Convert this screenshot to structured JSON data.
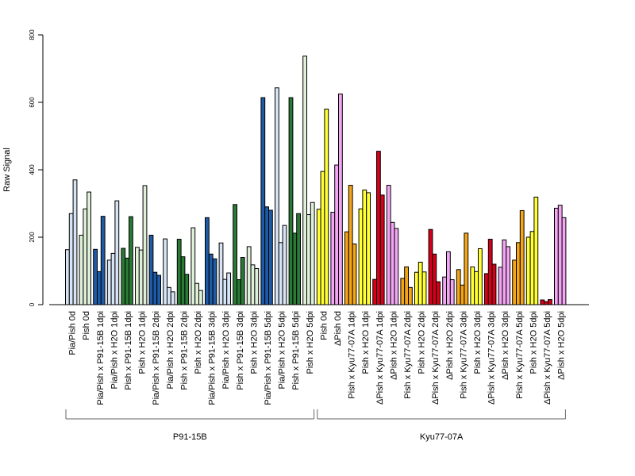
{
  "chart_data": {
    "type": "bar",
    "ylabel": "Raw Signal",
    "ylim": [
      0,
      800
    ],
    "yticks": [
      0,
      200,
      400,
      600,
      800
    ],
    "grid": false,
    "legend": "none",
    "colors": {
      "light_blue": "#d6e4f5",
      "dark_blue": "#1f5aa6",
      "light_green": "#dff0d8",
      "dark_green": "#2a7a36",
      "yellow": "#ffff33",
      "pink": "#f4a6f4",
      "orange": "#f5a516",
      "red": "#d7001a"
    },
    "categories": [
      {
        "label": "Pia/Pish 0d",
        "values": [
          163,
          270,
          370
        ],
        "color": "light_blue"
      },
      {
        "label": "Pish 0d",
        "values": [
          206,
          284,
          334
        ],
        "color": "light_green"
      },
      {
        "label": "Pia/Pish x P91-15B 1dpi",
        "values": [
          164,
          98,
          262
        ],
        "color": "dark_blue"
      },
      {
        "label": "Pia/Pish x H2O 1dpi",
        "values": [
          132,
          152,
          308
        ],
        "color": "light_blue"
      },
      {
        "label": "Pish x P91-15B 1dpi",
        "values": [
          167,
          138,
          261
        ],
        "color": "dark_green"
      },
      {
        "label": "Pish x H2O 1dpi",
        "values": [
          170,
          162,
          353
        ],
        "color": "light_green"
      },
      {
        "label": "Pia/Pish x P91-15B 2dpi",
        "values": [
          206,
          96,
          87
        ],
        "color": "dark_blue"
      },
      {
        "label": "Pia/Pish x H2O 2dpi",
        "values": [
          195,
          51,
          38
        ],
        "color": "light_blue"
      },
      {
        "label": "Pish x P91-15B 2dpi",
        "values": [
          194,
          142,
          90
        ],
        "color": "dark_green"
      },
      {
        "label": "Pish x H2O 2dpi",
        "values": [
          228,
          63,
          42
        ],
        "color": "light_green"
      },
      {
        "label": "Pia/Pish x P91-15B 3dpi",
        "values": [
          258,
          150,
          136
        ],
        "color": "dark_blue"
      },
      {
        "label": "Pia/Pish x H2O 3dpi",
        "values": [
          183,
          75,
          94
        ],
        "color": "light_blue"
      },
      {
        "label": "Pish x P91-15B 3dpi",
        "values": [
          297,
          74,
          140
        ],
        "color": "dark_green"
      },
      {
        "label": "Pish x H2O 3dpi",
        "values": [
          172,
          118,
          107
        ],
        "color": "light_green"
      },
      {
        "label": "Pia/Pish x P91-15B 5dpi",
        "values": [
          614,
          290,
          280
        ],
        "color": "dark_blue"
      },
      {
        "label": "Pia/Pish x H2O 5dpi",
        "values": [
          643,
          184,
          235
        ],
        "color": "light_blue"
      },
      {
        "label": "Pish x P91-15B 5dpi",
        "values": [
          614,
          212,
          270
        ],
        "color": "dark_green"
      },
      {
        "label": "Pish x H2O 5dpi",
        "values": [
          737,
          267,
          303
        ],
        "color": "light_green"
      },
      {
        "label": "Pish 0d",
        "values": [
          283,
          395,
          580
        ],
        "color": "yellow"
      },
      {
        "label": "ΔPish 0d",
        "values": [
          274,
          414,
          625
        ],
        "color": "pink"
      },
      {
        "label": "Pish x Kyu77-07A 1dpi",
        "values": [
          216,
          354,
          180
        ],
        "color": "orange"
      },
      {
        "label": "Pish x H2O 1dpi",
        "values": [
          284,
          340,
          332
        ],
        "color": "yellow"
      },
      {
        "label": "ΔPish x Kyu77-07A 1dpi",
        "values": [
          75,
          455,
          325
        ],
        "color": "red"
      },
      {
        "label": "ΔPish x H2O 1dpi",
        "values": [
          354,
          244,
          226
        ],
        "color": "pink"
      },
      {
        "label": "Pish x Kyu77-07A 2dpi",
        "values": [
          78,
          112,
          51
        ],
        "color": "orange"
      },
      {
        "label": "Pish x H2O 2dpi",
        "values": [
          96,
          126,
          97
        ],
        "color": "yellow"
      },
      {
        "label": "ΔPish x Kyu77-07A 2dpi",
        "values": [
          223,
          150,
          68
        ],
        "color": "red"
      },
      {
        "label": "ΔPish x H2O 2dpi",
        "values": [
          82,
          157,
          74
        ],
        "color": "pink"
      },
      {
        "label": "Pish x Kyu77-07A 3dpi",
        "values": [
          104,
          58,
          212
        ],
        "color": "orange"
      },
      {
        "label": "Pish x H2O 3dpi",
        "values": [
          112,
          98,
          166
        ],
        "color": "yellow"
      },
      {
        "label": "ΔPish x Kyu77-07A 3dpi",
        "values": [
          92,
          194,
          120
        ],
        "color": "red"
      },
      {
        "label": "ΔPish x H2O 3dpi",
        "values": [
          111,
          192,
          172
        ],
        "color": "pink"
      },
      {
        "label": "Pish x Kyu77-07A 5dpi",
        "values": [
          132,
          184,
          279
        ],
        "color": "orange"
      },
      {
        "label": "Pish x H2O 5dpi",
        "values": [
          200,
          217,
          319
        ],
        "color": "yellow"
      },
      {
        "label": "ΔPish x Kyu77-07A 5dpi",
        "values": [
          14,
          9,
          15
        ],
        "color": "red"
      },
      {
        "label": "ΔPish x H2O 5dpi",
        "values": [
          286,
          295,
          258
        ],
        "color": "pink"
      }
    ],
    "groups": [
      {
        "label": "P91-15B",
        "first": 0,
        "last": 17
      },
      {
        "label": "Kyu77-07A",
        "first": 18,
        "last": 35
      }
    ]
  }
}
